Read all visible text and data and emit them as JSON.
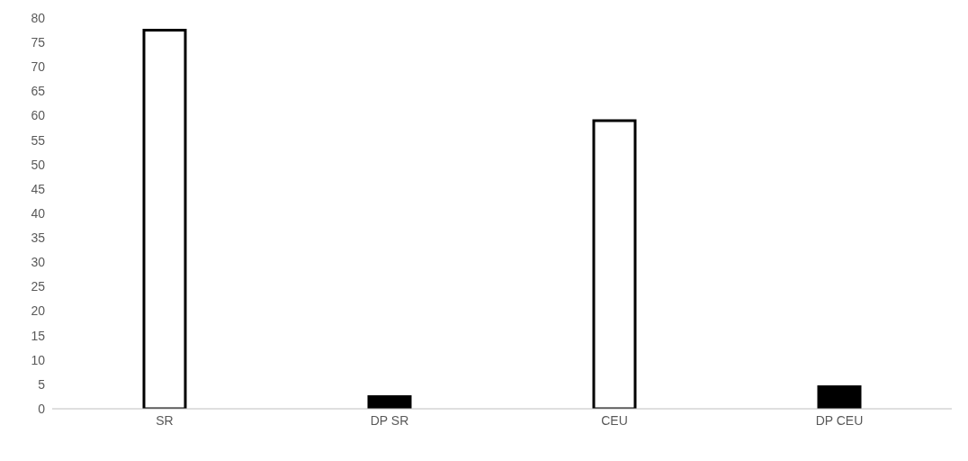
{
  "chart_data": {
    "type": "bar",
    "categories": [
      "SR",
      "DP SR",
      "CEU",
      "DP CEU"
    ],
    "values": [
      77.5,
      2.5,
      59,
      4.5
    ],
    "colors": [
      "#ffffff",
      "#000000",
      "#ffffff",
      "#000000"
    ],
    "ylim": [
      0,
      80
    ],
    "yticks": [
      0,
      5,
      10,
      15,
      20,
      25,
      30,
      35,
      40,
      45,
      50,
      55,
      60,
      65,
      70,
      75,
      80
    ],
    "grid": false,
    "legend": false
  }
}
